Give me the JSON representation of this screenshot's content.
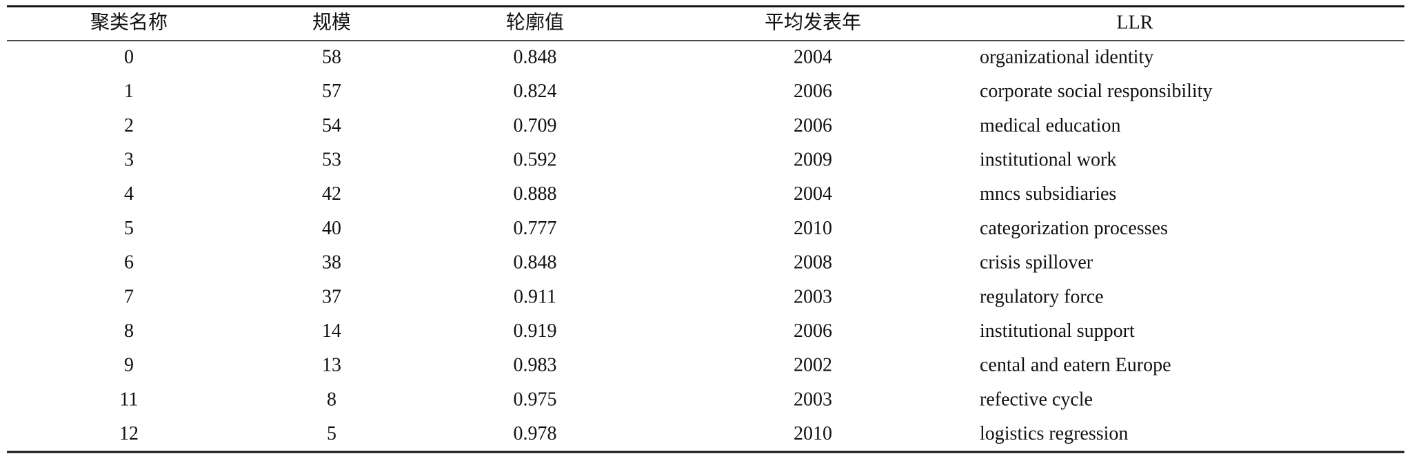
{
  "table": {
    "header": [
      "聚类名称",
      "规模",
      "轮廓值",
      "平均发表年",
      "LLR"
    ],
    "rows": [
      [
        0,
        58,
        0.848,
        2004,
        "organizational identity"
      ],
      [
        1,
        57,
        0.824,
        2006,
        "corporate social responsibility"
      ],
      [
        2,
        54,
        0.709,
        2006,
        "medical education"
      ],
      [
        3,
        53,
        0.592,
        2009,
        "institutional work"
      ],
      [
        4,
        42,
        0.888,
        2004,
        "mncs subsidiaries"
      ],
      [
        5,
        40,
        0.777,
        2010,
        "categorization processes"
      ],
      [
        6,
        38,
        0.848,
        2008,
        "crisis spillover"
      ],
      [
        7,
        37,
        0.911,
        2003,
        "regulatory force"
      ],
      [
        8,
        14,
        0.919,
        2006,
        "institutional support"
      ],
      [
        9,
        13,
        0.983,
        2002,
        "cental and eatern Europe"
      ],
      [
        11,
        8,
        0.975,
        2003,
        "refective cycle"
      ],
      [
        12,
        5,
        0.978,
        2010,
        "logistics regression"
      ]
    ]
  }
}
